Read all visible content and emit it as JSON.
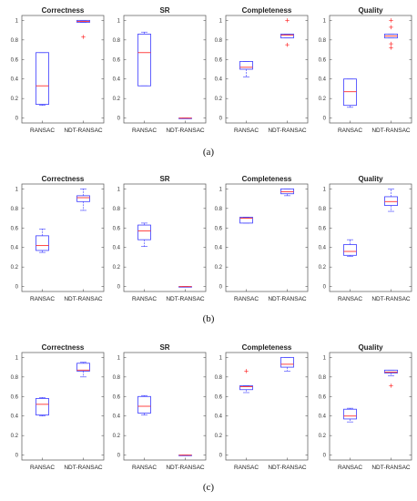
{
  "colors": {
    "box": "#3b3bff",
    "median": "#ff3030",
    "whisker": "#3b3bff",
    "outlier": "#ff3030",
    "axis": "#555555"
  },
  "chart_data": [
    {
      "row_label": "(a)",
      "panels": [
        {
          "type": "box",
          "title": "Correctness",
          "categories": [
            "RANSAC",
            "NDT-RANSAC"
          ],
          "ylim": [
            -0.05,
            1.05
          ],
          "yticks": [
            "0",
            "0.2",
            "0.4",
            "0.6",
            "0.8",
            "1"
          ],
          "boxes": [
            {
              "min": 0.13,
              "q1": 0.14,
              "median": 0.33,
              "q3": 0.67,
              "max": 0.67,
              "outliers": []
            },
            {
              "min": 0.98,
              "q1": 0.98,
              "median": 0.99,
              "q3": 1.0,
              "max": 1.0,
              "outliers": [
                0.83
              ]
            }
          ]
        },
        {
          "type": "box",
          "title": "SR",
          "categories": [
            "RANSAC",
            "NDT-RANSAC"
          ],
          "ylim": [
            -0.05,
            1.05
          ],
          "yticks": [
            "0",
            "0.2",
            "0.4",
            "0.6",
            "0.8",
            "1"
          ],
          "boxes": [
            {
              "min": 0.33,
              "q1": 0.33,
              "median": 0.67,
              "q3": 0.86,
              "max": 0.88,
              "outliers": []
            },
            {
              "min": 0.0,
              "q1": 0.0,
              "median": 0.0,
              "q3": 0.0,
              "max": 0.0,
              "outliers": []
            }
          ]
        },
        {
          "type": "box",
          "title": "Completeness",
          "categories": [
            "RANSAC",
            "NDT-RANSAC"
          ],
          "ylim": [
            -0.05,
            1.05
          ],
          "yticks": [
            "0",
            "0.2",
            "0.4",
            "0.6",
            "0.8",
            "1"
          ],
          "boxes": [
            {
              "min": 0.42,
              "q1": 0.5,
              "median": 0.52,
              "q3": 0.58,
              "max": 0.58,
              "outliers": []
            },
            {
              "min": 0.82,
              "q1": 0.82,
              "median": 0.85,
              "q3": 0.86,
              "max": 0.86,
              "outliers": [
                1.0,
                0.75
              ]
            }
          ]
        },
        {
          "type": "box",
          "title": "Quality",
          "categories": [
            "RANSAC",
            "NDT-RANSAC"
          ],
          "ylim": [
            -0.05,
            1.05
          ],
          "yticks": [
            "0",
            "0.2",
            "0.4",
            "0.6",
            "0.8",
            "1"
          ],
          "boxes": [
            {
              "min": 0.11,
              "q1": 0.13,
              "median": 0.27,
              "q3": 0.4,
              "max": 0.4,
              "outliers": []
            },
            {
              "min": 0.82,
              "q1": 0.82,
              "median": 0.84,
              "q3": 0.86,
              "max": 0.86,
              "outliers": [
                1.0,
                0.93,
                0.76,
                0.72
              ]
            }
          ]
        }
      ]
    },
    {
      "row_label": "(b)",
      "panels": [
        {
          "type": "box",
          "title": "Correctness",
          "categories": [
            "RANSAC",
            "NDT-RANSAC"
          ],
          "ylim": [
            -0.05,
            1.05
          ],
          "yticks": [
            "0",
            "0.2",
            "0.4",
            "0.6",
            "0.8",
            "1"
          ],
          "boxes": [
            {
              "min": 0.35,
              "q1": 0.37,
              "median": 0.42,
              "q3": 0.52,
              "max": 0.59,
              "outliers": []
            },
            {
              "min": 0.78,
              "q1": 0.87,
              "median": 0.91,
              "q3": 0.93,
              "max": 1.0,
              "outliers": []
            }
          ]
        },
        {
          "type": "box",
          "title": "SR",
          "categories": [
            "RANSAC",
            "NDT-RANSAC"
          ],
          "ylim": [
            -0.05,
            1.05
          ],
          "yticks": [
            "0",
            "0.2",
            "0.4",
            "0.6",
            "0.8",
            "1"
          ],
          "boxes": [
            {
              "min": 0.41,
              "q1": 0.48,
              "median": 0.57,
              "q3": 0.63,
              "max": 0.65,
              "outliers": []
            },
            {
              "min": 0.0,
              "q1": 0.0,
              "median": 0.0,
              "q3": 0.0,
              "max": 0.0,
              "outliers": []
            }
          ]
        },
        {
          "type": "box",
          "title": "Completeness",
          "categories": [
            "RANSAC",
            "NDT-RANSAC"
          ],
          "ylim": [
            -0.05,
            1.05
          ],
          "yticks": [
            "0",
            "0.2",
            "0.4",
            "0.6",
            "0.8",
            "1"
          ],
          "boxes": [
            {
              "min": 0.65,
              "q1": 0.65,
              "median": 0.7,
              "q3": 0.71,
              "max": 0.71,
              "outliers": []
            },
            {
              "min": 0.93,
              "q1": 0.95,
              "median": 0.97,
              "q3": 1.0,
              "max": 1.0,
              "outliers": []
            }
          ]
        },
        {
          "type": "box",
          "title": "Quality",
          "categories": [
            "RANSAC",
            "NDT-RANSAC"
          ],
          "ylim": [
            -0.05,
            1.05
          ],
          "yticks": [
            "0",
            "0.2",
            "0.4",
            "0.6",
            "0.8",
            "1"
          ],
          "boxes": [
            {
              "min": 0.31,
              "q1": 0.32,
              "median": 0.36,
              "q3": 0.43,
              "max": 0.48,
              "outliers": []
            },
            {
              "min": 0.77,
              "q1": 0.83,
              "median": 0.87,
              "q3": 0.92,
              "max": 1.0,
              "outliers": []
            }
          ]
        }
      ]
    },
    {
      "row_label": "(c)",
      "panels": [
        {
          "type": "box",
          "title": "Correctness",
          "categories": [
            "RANSAC",
            "NDT-RANSAC"
          ],
          "ylim": [
            -0.05,
            1.05
          ],
          "yticks": [
            "0",
            "0.2",
            "0.4",
            "0.6",
            "0.8",
            "1"
          ],
          "boxes": [
            {
              "min": 0.4,
              "q1": 0.41,
              "median": 0.52,
              "q3": 0.58,
              "max": 0.59,
              "outliers": []
            },
            {
              "min": 0.8,
              "q1": 0.86,
              "median": 0.87,
              "q3": 0.94,
              "max": 0.95,
              "outliers": []
            }
          ]
        },
        {
          "type": "box",
          "title": "SR",
          "categories": [
            "RANSAC",
            "NDT-RANSAC"
          ],
          "ylim": [
            -0.05,
            1.05
          ],
          "yticks": [
            "0",
            "0.2",
            "0.4",
            "0.6",
            "0.8",
            "1"
          ],
          "boxes": [
            {
              "min": 0.41,
              "q1": 0.43,
              "median": 0.5,
              "q3": 0.6,
              "max": 0.61,
              "outliers": []
            },
            {
              "min": 0.0,
              "q1": 0.0,
              "median": 0.0,
              "q3": 0.0,
              "max": 0.0,
              "outliers": []
            }
          ]
        },
        {
          "type": "box",
          "title": "Completeness",
          "categories": [
            "RANSAC",
            "NDT-RANSAC"
          ],
          "ylim": [
            -0.05,
            1.05
          ],
          "yticks": [
            "0",
            "0.2",
            "0.4",
            "0.6",
            "0.8",
            "1"
          ],
          "boxes": [
            {
              "min": 0.64,
              "q1": 0.67,
              "median": 0.7,
              "q3": 0.71,
              "max": 0.71,
              "outliers": [
                0.86
              ]
            },
            {
              "min": 0.86,
              "q1": 0.9,
              "median": 0.93,
              "q3": 1.0,
              "max": 1.0,
              "outliers": []
            }
          ]
        },
        {
          "type": "box",
          "title": "Quality",
          "categories": [
            "RANSAC",
            "NDT-RANSAC"
          ],
          "ylim": [
            -0.05,
            1.05
          ],
          "yticks": [
            "0",
            "0.2",
            "0.4",
            "0.6",
            "0.8",
            "1"
          ],
          "boxes": [
            {
              "min": 0.34,
              "q1": 0.37,
              "median": 0.4,
              "q3": 0.47,
              "max": 0.48,
              "outliers": []
            },
            {
              "min": 0.81,
              "q1": 0.84,
              "median": 0.85,
              "q3": 0.87,
              "max": 0.87,
              "outliers": [
                0.71
              ]
            }
          ]
        }
      ]
    }
  ]
}
